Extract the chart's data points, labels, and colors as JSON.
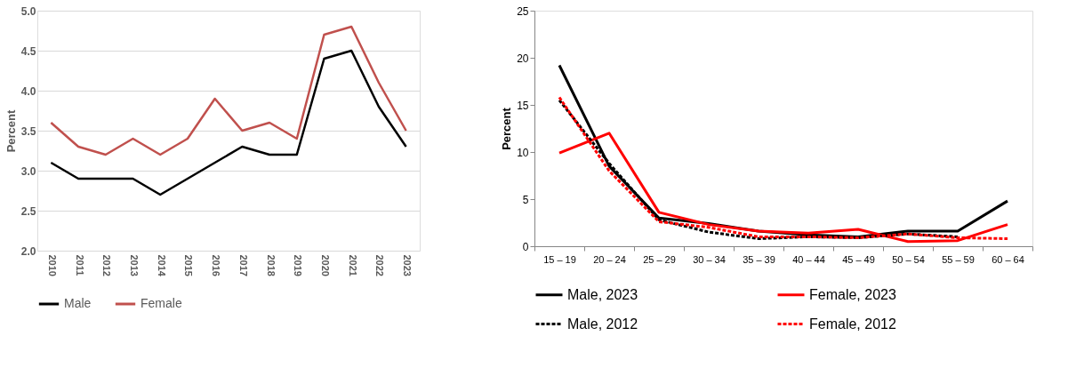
{
  "chart_data": [
    {
      "type": "line",
      "ylabel": "Percent",
      "categories": [
        "2010",
        "2011",
        "2012",
        "2013",
        "2014",
        "2015",
        "2016",
        "2017",
        "2018",
        "2019",
        "2020",
        "2021",
        "2022",
        "2023"
      ],
      "series": [
        {
          "name": "Male",
          "color": "#000000",
          "values": [
            3.1,
            2.9,
            2.9,
            2.9,
            2.7,
            2.9,
            3.1,
            3.3,
            3.2,
            3.2,
            4.4,
            4.5,
            3.8,
            3.3
          ]
        },
        {
          "name": "Female",
          "color": "#c0504d",
          "values": [
            3.6,
            3.3,
            3.2,
            3.4,
            3.2,
            3.4,
            3.9,
            3.5,
            3.6,
            3.4,
            4.7,
            4.8,
            4.1,
            3.5
          ]
        }
      ],
      "ylim": [
        2,
        5
      ],
      "yticks": [
        {
          "value": 2,
          "label": "2.0"
        },
        2.5,
        {
          "value": 3,
          "label": "3.0"
        },
        3.5,
        {
          "value": 4,
          "label": "4.0"
        },
        4.5,
        {
          "value": 5,
          "label": "5.0"
        }
      ],
      "grid": "y",
      "legend": "bottom",
      "line_style": "solid"
    },
    {
      "type": "line",
      "ylabel": "Percent",
      "categories": [
        "15 – 19",
        "20 – 24",
        "25 – 29",
        "30 – 34",
        "35 – 39",
        "40 – 44",
        "45 – 49",
        "50 – 54",
        "55 – 59",
        "60 – 64"
      ],
      "series": [
        {
          "name": "Male, 2023",
          "color": "#000000",
          "line_style": "solid",
          "values": [
            19.2,
            8.5,
            3.0,
            2.4,
            1.6,
            1.2,
            1.0,
            1.6,
            1.6,
            4.8
          ]
        },
        {
          "name": "Female, 2023",
          "color": "#ff0000",
          "line_style": "solid",
          "values": [
            9.9,
            12.0,
            3.6,
            2.3,
            1.6,
            1.4,
            1.8,
            0.5,
            0.6,
            2.3
          ]
        },
        {
          "name": "Male, 2012",
          "color": "#000000",
          "line_style": "dashed",
          "values": [
            15.5,
            8.8,
            2.8,
            1.5,
            0.8,
            1.0,
            0.9,
            1.3,
            1.0,
            null
          ]
        },
        {
          "name": "Female, 2012",
          "color": "#ff0000",
          "line_style": "dashed",
          "values": [
            15.8,
            8.0,
            2.6,
            2.0,
            1.0,
            1.0,
            0.9,
            1.3,
            0.9,
            0.8
          ]
        }
      ],
      "ylim": [
        0,
        25
      ],
      "yticks": [
        0,
        5,
        10,
        15,
        20,
        25
      ],
      "grid": false,
      "legend": "bottom"
    }
  ]
}
